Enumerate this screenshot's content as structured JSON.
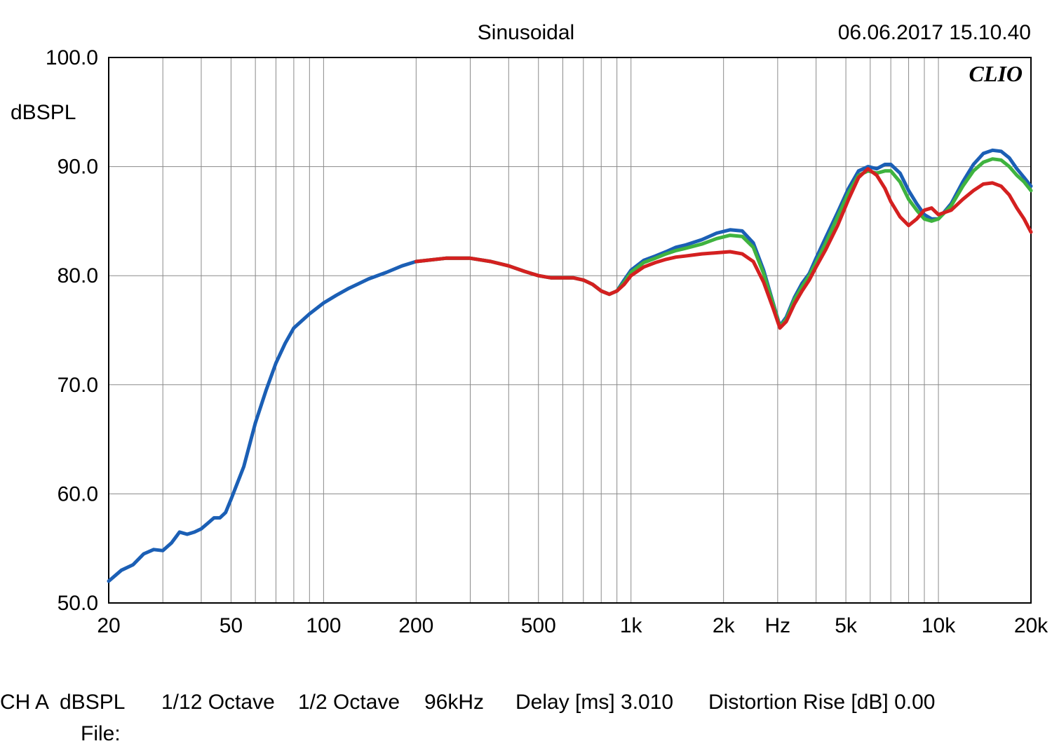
{
  "header": {
    "title": "Sinusoidal",
    "timestamp": "06.06.2017 15.10.40"
  },
  "footer": {
    "line1_items": [
      "CH A",
      "dBSPL",
      "1/12 Octave",
      "1/2 Octave",
      "96kHz",
      "Delay [ms] 3.010",
      "Distortion Rise [dB] 0.00"
    ],
    "line2_label": "File:",
    "line2_value": ""
  },
  "watermark": "CLIO",
  "chart": {
    "type": "line",
    "background_color": "#ffffff",
    "plot_border_color": "#000000",
    "grid_color": "#8a8a8a",
    "grid_width": 1,
    "line_width": 5,
    "font_size_ticks": 30,
    "font_size_axis": 30,
    "x_axis": {
      "scale": "log",
      "min": 20,
      "max": 20000,
      "unit_label": "Hz",
      "unit_label_at": 3000,
      "labeled_ticks": [
        {
          "v": 20,
          "label": "20"
        },
        {
          "v": 50,
          "label": "50"
        },
        {
          "v": 100,
          "label": "100"
        },
        {
          "v": 200,
          "label": "200"
        },
        {
          "v": 500,
          "label": "500"
        },
        {
          "v": 1000,
          "label": "1k"
        },
        {
          "v": 2000,
          "label": "2k"
        },
        {
          "v": 5000,
          "label": "5k"
        },
        {
          "v": 10000,
          "label": "10k"
        },
        {
          "v": 20000,
          "label": "20k"
        }
      ],
      "minor_ticks": [
        30,
        40,
        60,
        70,
        80,
        90,
        300,
        400,
        600,
        700,
        800,
        900,
        3000,
        4000,
        6000,
        7000,
        8000,
        9000
      ]
    },
    "y_axis": {
      "scale": "linear",
      "min": 50,
      "max": 100,
      "tick_step": 10,
      "label": "dBSPL",
      "label_at": 95,
      "labeled_ticks": [
        {
          "v": 50,
          "label": "50.0"
        },
        {
          "v": 60,
          "label": "60.0"
        },
        {
          "v": 70,
          "label": "70.0"
        },
        {
          "v": 80,
          "label": "80.0"
        },
        {
          "v": 90,
          "label": "90.0"
        },
        {
          "v": 100,
          "label": "100.0"
        }
      ]
    },
    "series": [
      {
        "name": "blue",
        "color": "#1b5fb5",
        "data": [
          [
            20,
            52.0
          ],
          [
            22,
            53.0
          ],
          [
            24,
            53.5
          ],
          [
            26,
            54.5
          ],
          [
            28,
            54.9
          ],
          [
            30,
            54.8
          ],
          [
            32,
            55.5
          ],
          [
            34,
            56.5
          ],
          [
            36,
            56.3
          ],
          [
            38,
            56.5
          ],
          [
            40,
            56.8
          ],
          [
            42,
            57.3
          ],
          [
            44,
            57.8
          ],
          [
            46,
            57.8
          ],
          [
            48,
            58.3
          ],
          [
            50,
            59.5
          ],
          [
            55,
            62.5
          ],
          [
            60,
            66.5
          ],
          [
            65,
            69.5
          ],
          [
            70,
            72.0
          ],
          [
            75,
            73.8
          ],
          [
            80,
            75.2
          ],
          [
            90,
            76.5
          ],
          [
            100,
            77.5
          ],
          [
            110,
            78.2
          ],
          [
            120,
            78.8
          ],
          [
            140,
            79.7
          ],
          [
            160,
            80.3
          ],
          [
            180,
            80.9
          ],
          [
            200,
            81.3
          ],
          [
            250,
            81.6
          ],
          [
            300,
            81.6
          ],
          [
            350,
            81.3
          ],
          [
            400,
            80.9
          ],
          [
            450,
            80.4
          ],
          [
            500,
            80.0
          ],
          [
            550,
            79.8
          ],
          [
            600,
            79.8
          ],
          [
            650,
            79.8
          ],
          [
            700,
            79.6
          ],
          [
            750,
            79.2
          ],
          [
            800,
            78.6
          ],
          [
            850,
            78.3
          ],
          [
            900,
            78.6
          ],
          [
            950,
            79.6
          ],
          [
            1000,
            80.5
          ],
          [
            1100,
            81.4
          ],
          [
            1200,
            81.8
          ],
          [
            1300,
            82.2
          ],
          [
            1400,
            82.6
          ],
          [
            1500,
            82.8
          ],
          [
            1700,
            83.3
          ],
          [
            1900,
            83.9
          ],
          [
            2100,
            84.2
          ],
          [
            2300,
            84.1
          ],
          [
            2500,
            83.0
          ],
          [
            2700,
            80.5
          ],
          [
            2900,
            77.5
          ],
          [
            3050,
            75.4
          ],
          [
            3200,
            76.2
          ],
          [
            3400,
            78.0
          ],
          [
            3600,
            79.3
          ],
          [
            3800,
            80.2
          ],
          [
            4000,
            81.6
          ],
          [
            4300,
            83.5
          ],
          [
            4700,
            85.8
          ],
          [
            5100,
            88.0
          ],
          [
            5500,
            89.6
          ],
          [
            5900,
            90.0
          ],
          [
            6300,
            89.8
          ],
          [
            6700,
            90.2
          ],
          [
            7000,
            90.2
          ],
          [
            7500,
            89.4
          ],
          [
            8000,
            87.8
          ],
          [
            8500,
            86.6
          ],
          [
            9000,
            85.6
          ],
          [
            9500,
            85.2
          ],
          [
            10000,
            85.2
          ],
          [
            11000,
            86.6
          ],
          [
            12000,
            88.6
          ],
          [
            13000,
            90.2
          ],
          [
            14000,
            91.2
          ],
          [
            15000,
            91.5
          ],
          [
            16000,
            91.4
          ],
          [
            17000,
            90.8
          ],
          [
            18000,
            89.8
          ],
          [
            19000,
            89.0
          ],
          [
            20000,
            88.2
          ]
        ]
      },
      {
        "name": "green",
        "color": "#3fb33f",
        "data": [
          [
            200,
            81.3
          ],
          [
            250,
            81.6
          ],
          [
            300,
            81.6
          ],
          [
            350,
            81.3
          ],
          [
            400,
            80.9
          ],
          [
            450,
            80.4
          ],
          [
            500,
            80.0
          ],
          [
            550,
            79.8
          ],
          [
            600,
            79.8
          ],
          [
            650,
            79.8
          ],
          [
            700,
            79.6
          ],
          [
            750,
            79.2
          ],
          [
            800,
            78.6
          ],
          [
            850,
            78.3
          ],
          [
            900,
            78.6
          ],
          [
            950,
            79.4
          ],
          [
            1000,
            80.3
          ],
          [
            1100,
            81.2
          ],
          [
            1200,
            81.6
          ],
          [
            1300,
            82.0
          ],
          [
            1400,
            82.3
          ],
          [
            1500,
            82.5
          ],
          [
            1700,
            82.9
          ],
          [
            1900,
            83.4
          ],
          [
            2100,
            83.7
          ],
          [
            2300,
            83.6
          ],
          [
            2500,
            82.6
          ],
          [
            2700,
            80.2
          ],
          [
            2900,
            77.4
          ],
          [
            3050,
            75.3
          ],
          [
            3200,
            76.0
          ],
          [
            3400,
            77.8
          ],
          [
            3600,
            79.0
          ],
          [
            3800,
            80.0
          ],
          [
            4000,
            81.2
          ],
          [
            4300,
            83.0
          ],
          [
            4700,
            85.4
          ],
          [
            5100,
            87.6
          ],
          [
            5500,
            89.2
          ],
          [
            5900,
            89.6
          ],
          [
            6300,
            89.4
          ],
          [
            6700,
            89.6
          ],
          [
            7000,
            89.6
          ],
          [
            7500,
            88.6
          ],
          [
            8000,
            87.0
          ],
          [
            8500,
            86.0
          ],
          [
            9000,
            85.2
          ],
          [
            9500,
            85.0
          ],
          [
            10000,
            85.2
          ],
          [
            11000,
            86.4
          ],
          [
            12000,
            88.2
          ],
          [
            13000,
            89.6
          ],
          [
            14000,
            90.4
          ],
          [
            15000,
            90.7
          ],
          [
            16000,
            90.6
          ],
          [
            17000,
            90.0
          ],
          [
            18000,
            89.2
          ],
          [
            19000,
            88.6
          ],
          [
            20000,
            87.8
          ]
        ]
      },
      {
        "name": "red",
        "color": "#d42020",
        "data": [
          [
            200,
            81.3
          ],
          [
            250,
            81.6
          ],
          [
            300,
            81.6
          ],
          [
            350,
            81.3
          ],
          [
            400,
            80.9
          ],
          [
            450,
            80.4
          ],
          [
            500,
            80.0
          ],
          [
            550,
            79.8
          ],
          [
            600,
            79.8
          ],
          [
            650,
            79.8
          ],
          [
            700,
            79.6
          ],
          [
            750,
            79.2
          ],
          [
            800,
            78.6
          ],
          [
            850,
            78.3
          ],
          [
            900,
            78.6
          ],
          [
            950,
            79.2
          ],
          [
            1000,
            80.0
          ],
          [
            1100,
            80.8
          ],
          [
            1200,
            81.2
          ],
          [
            1300,
            81.5
          ],
          [
            1400,
            81.7
          ],
          [
            1500,
            81.8
          ],
          [
            1700,
            82.0
          ],
          [
            1900,
            82.1
          ],
          [
            2100,
            82.2
          ],
          [
            2300,
            82.0
          ],
          [
            2500,
            81.3
          ],
          [
            2700,
            79.4
          ],
          [
            2900,
            77.0
          ],
          [
            3050,
            75.2
          ],
          [
            3200,
            75.8
          ],
          [
            3400,
            77.4
          ],
          [
            3600,
            78.6
          ],
          [
            3800,
            79.6
          ],
          [
            4000,
            80.8
          ],
          [
            4300,
            82.4
          ],
          [
            4700,
            84.6
          ],
          [
            5100,
            87.0
          ],
          [
            5500,
            89.0
          ],
          [
            5900,
            89.8
          ],
          [
            6300,
            89.2
          ],
          [
            6700,
            88.0
          ],
          [
            7000,
            86.8
          ],
          [
            7500,
            85.4
          ],
          [
            8000,
            84.6
          ],
          [
            8500,
            85.2
          ],
          [
            9000,
            86.0
          ],
          [
            9500,
            86.2
          ],
          [
            10000,
            85.6
          ],
          [
            11000,
            86.0
          ],
          [
            12000,
            87.0
          ],
          [
            13000,
            87.8
          ],
          [
            14000,
            88.4
          ],
          [
            15000,
            88.5
          ],
          [
            16000,
            88.2
          ],
          [
            17000,
            87.4
          ],
          [
            18000,
            86.2
          ],
          [
            19000,
            85.2
          ],
          [
            20000,
            84.0
          ]
        ]
      }
    ]
  }
}
